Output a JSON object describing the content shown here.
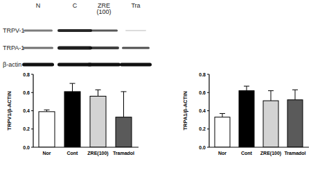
{
  "blot": {
    "lanes": [
      "N",
      "C",
      "ZRE (100)",
      "Tra"
    ],
    "rows": [
      "TRPV-1",
      "TRPA-1",
      "β-actin"
    ]
  },
  "chart_data": [
    {
      "type": "bar",
      "y_label": "TRPV1/β-ACTIN",
      "categories": [
        "Nor",
        "Cont",
        "ZRE(100)",
        "Tramadol"
      ],
      "values": [
        0.39,
        0.61,
        0.56,
        0.33
      ],
      "errors": [
        0.02,
        0.09,
        0.07,
        0.28
      ],
      "colors": [
        "#ffffff",
        "#000000",
        "#d3d3d3",
        "#5a5a5a"
      ],
      "ylim": [
        0,
        0.8
      ],
      "yticks": [
        {
          "value": 0,
          "label": "0.0"
        },
        0.2,
        0.4,
        0.6,
        0.8
      ]
    },
    {
      "type": "bar",
      "y_label": "TRPA1/β-ACTIN",
      "categories": [
        "Nor",
        "Cont",
        "ZRE(100)",
        "Tramadol"
      ],
      "values": [
        0.33,
        0.62,
        0.51,
        0.52
      ],
      "errors": [
        0.04,
        0.05,
        0.11,
        0.11
      ],
      "colors": [
        "#ffffff",
        "#000000",
        "#d3d3d3",
        "#5a5a5a"
      ],
      "ylim": [
        0,
        0.8
      ],
      "yticks": [
        {
          "value": 0,
          "label": "0.0"
        },
        0.2,
        0.4,
        0.6,
        0.8
      ]
    }
  ]
}
